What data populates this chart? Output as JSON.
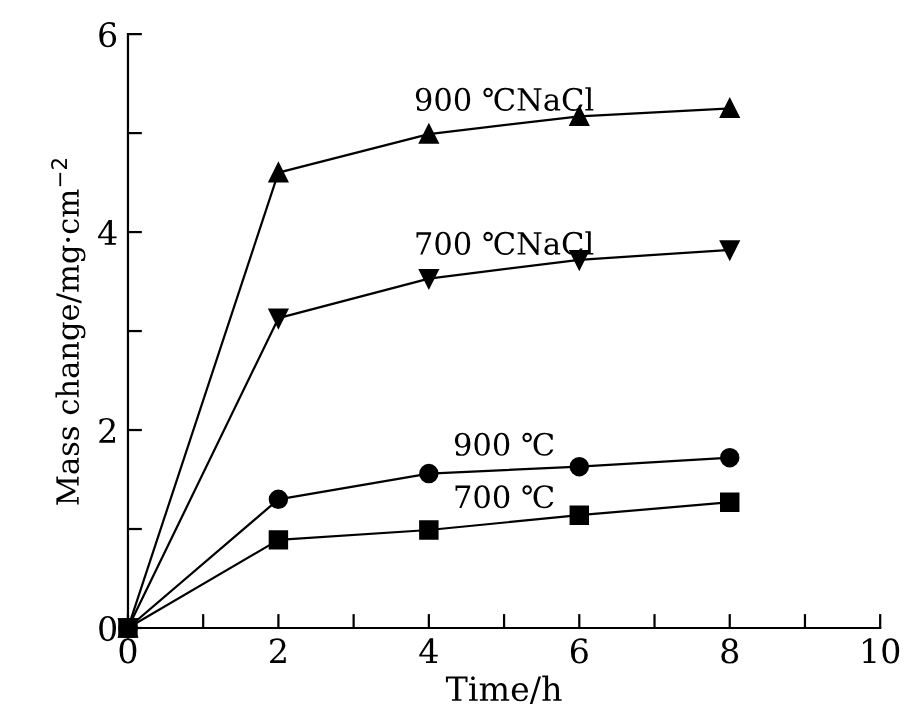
{
  "chart_data": {
    "type": "line",
    "xlabel": "Time/h",
    "ylabel": "Mass change/mg·cm$^{−2}$",
    "xlim": [
      0,
      10
    ],
    "ylim": [
      0,
      6
    ],
    "xticks": [
      0,
      {
        "value": 1,
        "label": null
      },
      2,
      {
        "value": 3,
        "label": null
      },
      4,
      {
        "value": 5,
        "label": null
      },
      6,
      {
        "value": 7,
        "label": null
      },
      8,
      {
        "value": 9,
        "label": null
      },
      10
    ],
    "yticks": [
      0,
      {
        "value": 1,
        "label": null
      },
      2,
      {
        "value": 3,
        "label": null
      },
      4,
      {
        "value": 5,
        "label": null
      },
      6
    ],
    "x": [
      0,
      2,
      4,
      6,
      8
    ],
    "series": [
      {
        "name": "900 ℃NaCl",
        "color": "#000000",
        "marker": "triangle",
        "values": [
          0,
          4.6,
          4.99,
          5.17,
          5.25
        ]
      },
      {
        "name": "700 ℃NaCl",
        "color": "#000000",
        "marker": "triangle_down",
        "values": [
          0,
          3.13,
          3.53,
          3.72,
          3.82
        ]
      },
      {
        "name": "900 ℃",
        "color": "#000000",
        "marker": "circle",
        "values": [
          0,
          1.3,
          1.56,
          1.63,
          1.72
        ]
      },
      {
        "name": "700 ℃",
        "color": "#000000",
        "marker": "square",
        "values": [
          0,
          0.89,
          0.99,
          1.14,
          1.27
        ]
      }
    ],
    "grid": false,
    "legend": false,
    "line_style": "solid"
  }
}
